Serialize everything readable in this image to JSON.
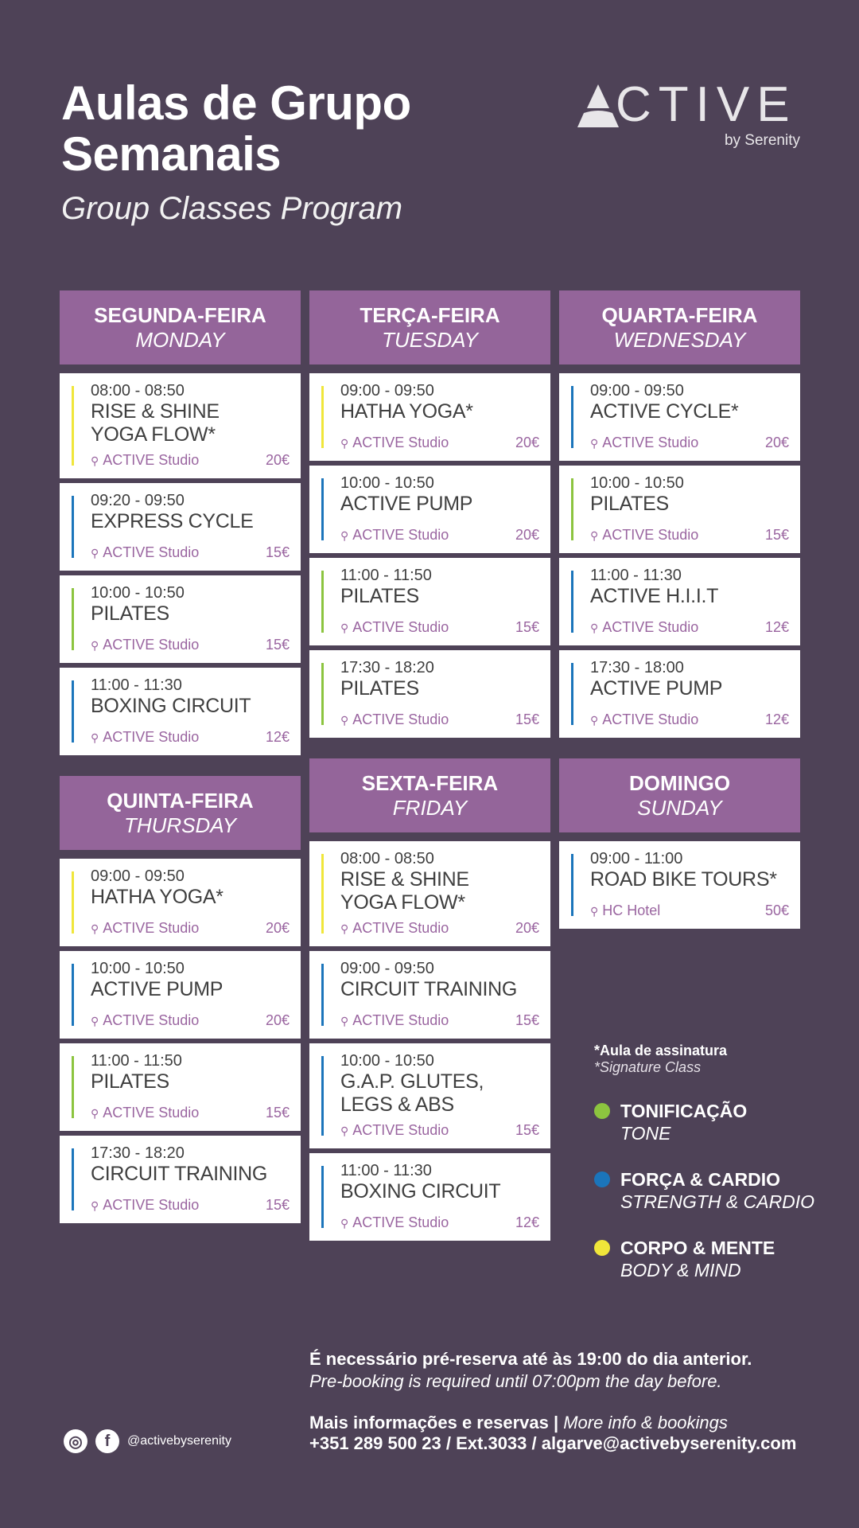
{
  "header": {
    "title_line1": "Aulas de Grupo",
    "title_line2": "Semanais",
    "subtitle": "Group Classes Program",
    "logo_text": "ACTIVE",
    "logo_sub": "by Serenity"
  },
  "colors": {
    "background": "#4e4257",
    "day_header": "#94659a",
    "location": "#9a65a0",
    "tone": "#8cc43f",
    "strength_cardio": "#1b75bb",
    "body_mind": "#f0e63a"
  },
  "days": [
    {
      "pt": "SEGUNDA-FEIRA",
      "en": "MONDAY",
      "classes": [
        {
          "time": "08:00 - 08:50",
          "title": "RISE & SHINE\nYOGA FLOW*",
          "location": "ACTIVE Studio",
          "price": "20€",
          "category": "body_mind"
        },
        {
          "time": "09:20 - 09:50",
          "title": "EXPRESS CYCLE",
          "location": "ACTIVE Studio",
          "price": "15€",
          "category": "strength_cardio"
        },
        {
          "time": "10:00 - 10:50",
          "title": "PILATES",
          "location": "ACTIVE Studio",
          "price": "15€",
          "category": "tone"
        },
        {
          "time": "11:00 - 11:30",
          "title": "BOXING CIRCUIT",
          "location": "ACTIVE Studio",
          "price": "12€",
          "category": "strength_cardio"
        }
      ]
    },
    {
      "pt": "TERÇA-FEIRA",
      "en": "TUESDAY",
      "classes": [
        {
          "time": "09:00 - 09:50",
          "title": "HATHA YOGA*",
          "location": "ACTIVE Studio",
          "price": "20€",
          "category": "body_mind"
        },
        {
          "time": "10:00 - 10:50",
          "title": "ACTIVE PUMP",
          "location": "ACTIVE Studio",
          "price": "20€",
          "category": "strength_cardio"
        },
        {
          "time": "11:00 - 11:50",
          "title": "PILATES",
          "location": "ACTIVE Studio",
          "price": "15€",
          "category": "tone"
        },
        {
          "time": "17:30 - 18:20",
          "title": "PILATES",
          "location": "ACTIVE Studio",
          "price": "15€",
          "category": "tone"
        }
      ]
    },
    {
      "pt": "QUARTA-FEIRA",
      "en": "WEDNESDAY",
      "classes": [
        {
          "time": "09:00 - 09:50",
          "title": "ACTIVE CYCLE*",
          "location": "ACTIVE Studio",
          "price": "20€",
          "category": "strength_cardio"
        },
        {
          "time": "10:00 - 10:50",
          "title": "PILATES",
          "location": "ACTIVE Studio",
          "price": "15€",
          "category": "tone"
        },
        {
          "time": "11:00 - 11:30",
          "title": "ACTIVE H.I.I.T",
          "location": "ACTIVE Studio",
          "price": "12€",
          "category": "strength_cardio"
        },
        {
          "time": "17:30 - 18:00",
          "title": "ACTIVE PUMP",
          "location": "ACTIVE Studio",
          "price": "12€",
          "category": "strength_cardio"
        }
      ]
    },
    {
      "pt": "QUINTA-FEIRA",
      "en": "THURSDAY",
      "classes": [
        {
          "time": "09:00 - 09:50",
          "title": "HATHA YOGA*",
          "location": "ACTIVE Studio",
          "price": "20€",
          "category": "body_mind"
        },
        {
          "time": "10:00 - 10:50",
          "title": "ACTIVE PUMP",
          "location": "ACTIVE Studio",
          "price": "20€",
          "category": "strength_cardio"
        },
        {
          "time": "11:00 - 11:50",
          "title": "PILATES",
          "location": "ACTIVE Studio",
          "price": "15€",
          "category": "tone"
        },
        {
          "time": "17:30 - 18:20",
          "title": "CIRCUIT TRAINING",
          "location": "ACTIVE Studio",
          "price": "15€",
          "category": "strength_cardio"
        }
      ]
    },
    {
      "pt": "SEXTA-FEIRA",
      "en": "FRIDAY",
      "classes": [
        {
          "time": "08:00 - 08:50",
          "title": "RISE & SHINE\nYOGA FLOW*",
          "location": "ACTIVE Studio",
          "price": "20€",
          "category": "body_mind"
        },
        {
          "time": "09:00 - 09:50",
          "title": "CIRCUIT TRAINING",
          "location": "ACTIVE Studio",
          "price": "15€",
          "category": "strength_cardio"
        },
        {
          "time": "10:00 - 10:50",
          "title": "G.A.P. GLUTES,\nLEGS & ABS",
          "location": "ACTIVE Studio",
          "price": "15€",
          "category": "strength_cardio"
        },
        {
          "time": "11:00 - 11:30",
          "title": "BOXING CIRCUIT",
          "location": "ACTIVE Studio",
          "price": "12€",
          "category": "strength_cardio"
        }
      ]
    },
    {
      "pt": "DOMINGO",
      "en": "SUNDAY",
      "classes": [
        {
          "time": "09:00 - 11:00",
          "title": "ROAD BIKE TOURS*",
          "location": "HC Hotel",
          "price": "50€",
          "category": "strength_cardio"
        }
      ]
    }
  ],
  "legend": {
    "signature_pt": "*Aula de assinatura",
    "signature_en": "*Signature Class",
    "items": [
      {
        "pt": "TONIFICAÇÃO",
        "en": "TONE",
        "category": "tone"
      },
      {
        "pt": "FORÇA & CARDIO",
        "en": "STRENGTH & CARDIO",
        "category": "strength_cardio"
      },
      {
        "pt": "CORPO & MENTE",
        "en": "BODY & MIND",
        "category": "body_mind"
      }
    ]
  },
  "footer": {
    "booking_pt": "É necessário pré-reserva até às 19:00 do dia anterior.",
    "booking_en": "Pre-booking is required until 07:00pm the day before.",
    "info_pt": "Mais informações e reservas |",
    "info_en": "More info & bookings",
    "contact": "+351 289 500 23 / Ext.3033 / algarve@activebyserenity.com",
    "social_handle": "@activebyserenity",
    "social_icons": [
      "instagram-icon",
      "facebook-icon"
    ]
  }
}
